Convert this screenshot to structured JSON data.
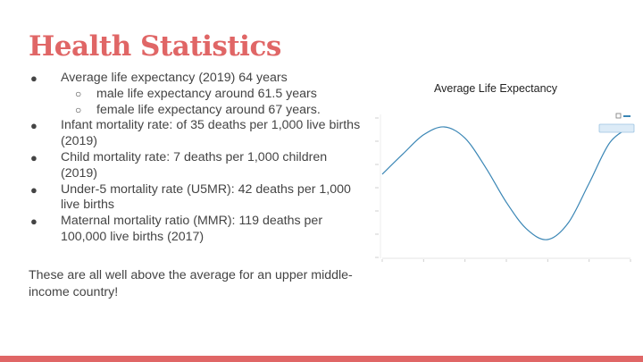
{
  "slide": {
    "title": "Health Statistics",
    "accent_color": "#e06666",
    "bullets": [
      {
        "level": 1,
        "marker": "●",
        "text": "Average life expectancy (2019) 64 years"
      },
      {
        "level": 2,
        "marker": "○",
        "text": "male life expectancy around 61.5 years"
      },
      {
        "level": 2,
        "marker": "○",
        "text": "female life expectancy around 67 years."
      },
      {
        "level": 1,
        "marker": "●",
        "text": "Infant mortality rate: of 35 deaths per 1,000 live births (2019)"
      },
      {
        "level": 1,
        "marker": "●",
        "text": "Child mortality rate: 7 deaths per 1,000 children (2019)"
      },
      {
        "level": 1,
        "marker": "●",
        "text": "Under-5 mortality rate (U5MR): 42 deaths per 1,000 live births"
      },
      {
        "level": 1,
        "marker": "●",
        "text": "Maternal mortality ratio (MMR): 119 deaths per 100,000 live births (2017)"
      }
    ],
    "summary": "These are all well above the average for an upper middle-income country!"
  },
  "chart_title": "Average Life Expectancy",
  "chart_data": {
    "type": "line",
    "title": "Average Life Expectancy",
    "xlabel": "",
    "ylabel": "",
    "x": [
      1960,
      1965,
      1970,
      1975,
      1980,
      1985,
      1990,
      1995,
      2000,
      2005,
      2010,
      2015,
      2020
    ],
    "series": [
      {
        "values": [
          0.58,
          0.76,
          0.93,
          1.0,
          0.9,
          0.64,
          0.33,
          0.09,
          0.0,
          0.15,
          0.5,
          0.86,
          1.0
        ],
        "color": "#3a86b5"
      }
    ],
    "grid": false,
    "legend": "top-right"
  }
}
